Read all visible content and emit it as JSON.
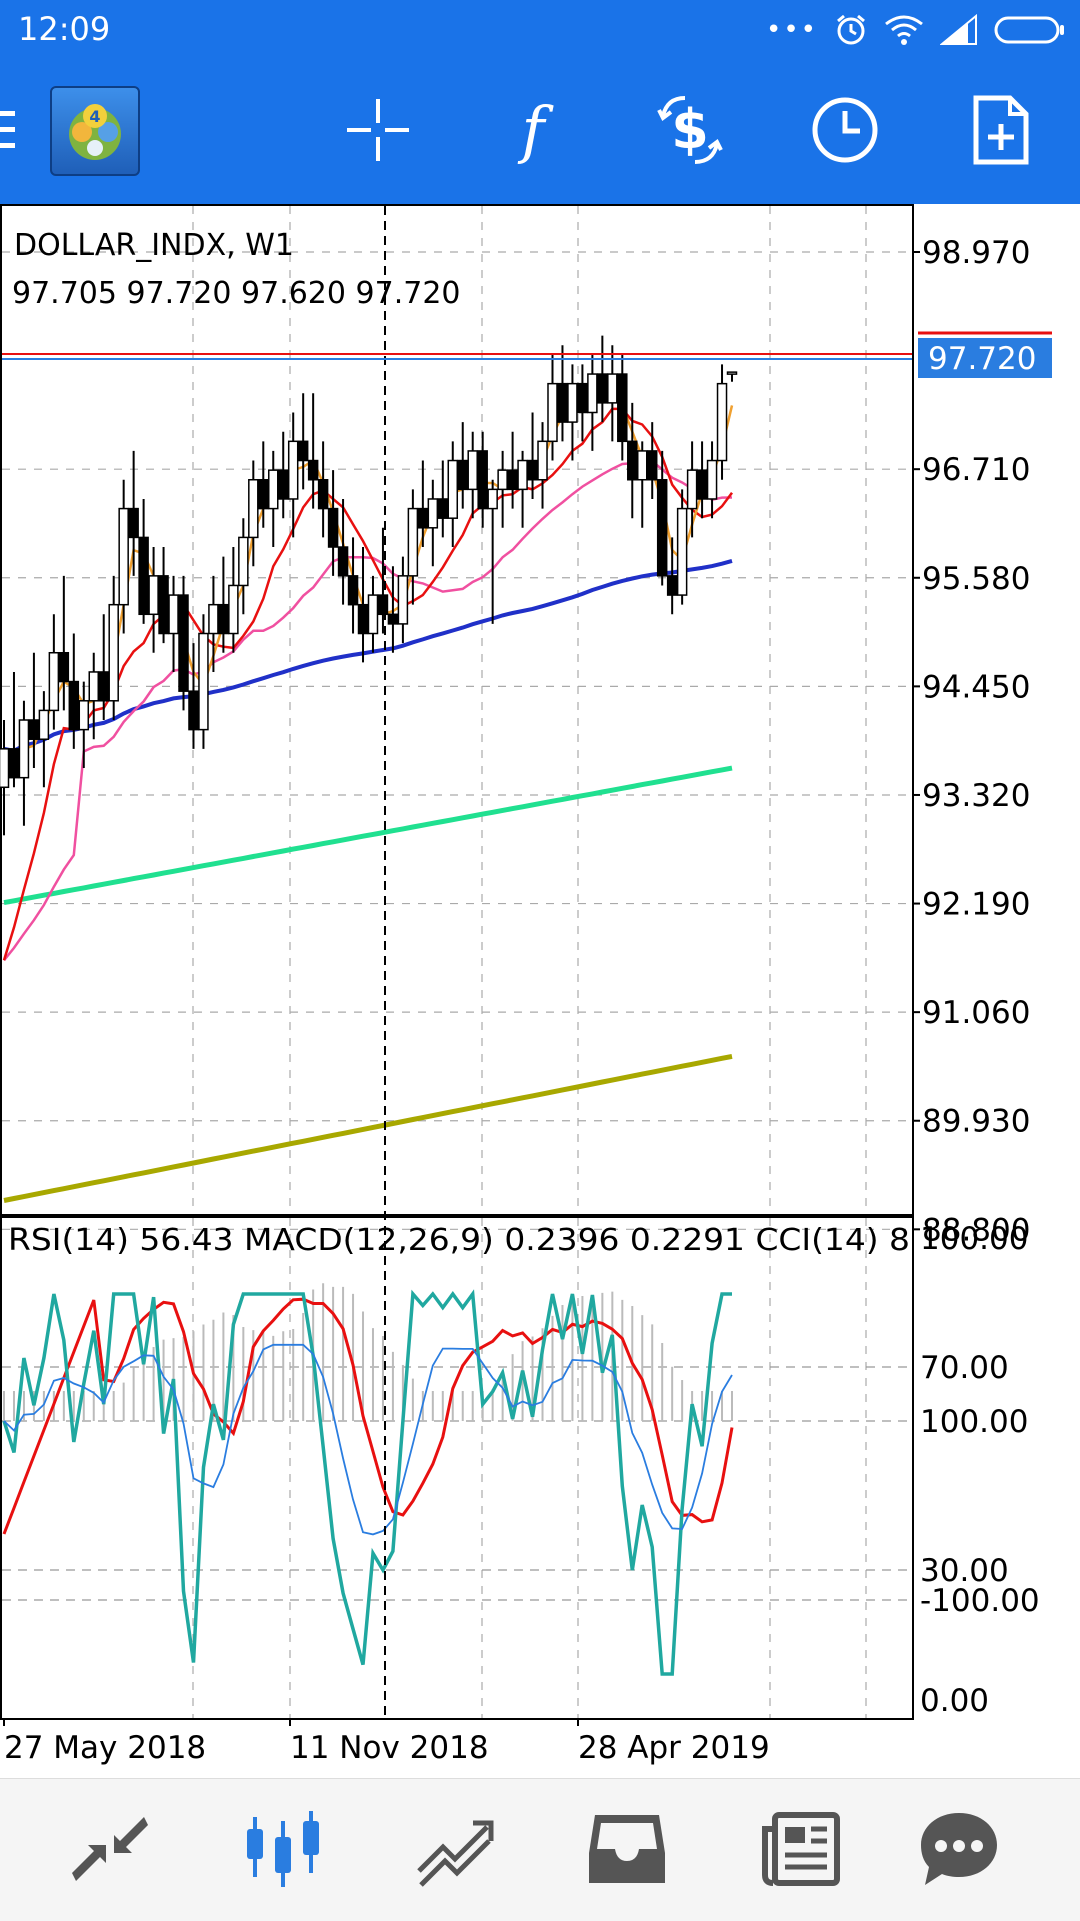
{
  "status_bar": {
    "time": "12:09",
    "signal": "...",
    "battery": ""
  },
  "chart": {
    "symbol_title": "DOLLAR_INDX, W1",
    "ohlc": "97.705 97.720 97.620 97.720",
    "price_axis": [
      "98.970",
      "96.710",
      "95.580",
      "94.450",
      "93.320",
      "92.190",
      "91.060",
      "89.930",
      "88.800"
    ],
    "current_price": "97.720",
    "indicator_title": "RSI(14) 56.43 MACD(12,26,9) 0.2396 0.2291 CCI(14) 8",
    "indicator_axis": [
      "100.00",
      "70.00",
      "100.00",
      "30.00",
      "-100.00",
      "0.00"
    ],
    "date_axis": [
      "27 May 2018",
      "11 Nov 2018",
      "28 Apr 2019"
    ]
  },
  "colors": {
    "toolbar": "#1a73e8",
    "ma_fast": "#f0a030",
    "ma_red": "#e81010",
    "ma_pink": "#f050a0",
    "ma_blue": "#2030c8",
    "ma_green": "#20e090",
    "ma_olive": "#a8a800",
    "rsi": "#e81010",
    "macd_signal": "#2a7de0",
    "cci": "#20a8a0",
    "price_tag": "#2a7de0"
  },
  "chart_data": {
    "type": "candlestick",
    "title": "DOLLAR_INDX, W1",
    "ylim": [
      88.2,
      99.8
    ],
    "price_ticks": [
      98.97,
      96.71,
      95.58,
      94.45,
      93.32,
      92.19,
      91.06,
      89.93,
      88.8
    ],
    "indicator_ticks": [
      100,
      70,
      30,
      0
    ],
    "candles": [
      {
        "o": 93.4,
        "h": 94.1,
        "l": 92.9,
        "c": 93.8
      },
      {
        "o": 93.8,
        "h": 94.6,
        "l": 93.4,
        "c": 93.5
      },
      {
        "o": 93.5,
        "h": 94.3,
        "l": 93.0,
        "c": 94.1
      },
      {
        "o": 94.1,
        "h": 94.8,
        "l": 93.6,
        "c": 93.9
      },
      {
        "o": 93.9,
        "h": 94.4,
        "l": 93.4,
        "c": 94.2
      },
      {
        "o": 94.2,
        "h": 95.2,
        "l": 94.0,
        "c": 94.8
      },
      {
        "o": 94.8,
        "h": 95.6,
        "l": 94.2,
        "c": 94.5
      },
      {
        "o": 94.5,
        "h": 95.0,
        "l": 93.8,
        "c": 94.0
      },
      {
        "o": 94.0,
        "h": 94.5,
        "l": 93.6,
        "c": 94.3
      },
      {
        "o": 94.3,
        "h": 94.8,
        "l": 93.9,
        "c": 94.6
      },
      {
        "o": 94.6,
        "h": 95.2,
        "l": 94.1,
        "c": 94.3
      },
      {
        "o": 94.3,
        "h": 95.6,
        "l": 94.1,
        "c": 95.3
      },
      {
        "o": 95.3,
        "h": 96.6,
        "l": 95.0,
        "c": 96.3
      },
      {
        "o": 96.3,
        "h": 96.9,
        "l": 95.6,
        "c": 96.0
      },
      {
        "o": 96.0,
        "h": 96.4,
        "l": 95.1,
        "c": 95.2
      },
      {
        "o": 95.2,
        "h": 95.9,
        "l": 94.8,
        "c": 95.6
      },
      {
        "o": 95.6,
        "h": 95.9,
        "l": 94.9,
        "c": 95.0
      },
      {
        "o": 95.0,
        "h": 95.6,
        "l": 94.6,
        "c": 95.4
      },
      {
        "o": 95.4,
        "h": 95.6,
        "l": 94.2,
        "c": 94.4
      },
      {
        "o": 94.4,
        "h": 94.9,
        "l": 93.8,
        "c": 94.0
      },
      {
        "o": 94.0,
        "h": 95.2,
        "l": 93.8,
        "c": 95.0
      },
      {
        "o": 95.0,
        "h": 95.6,
        "l": 94.6,
        "c": 95.3
      },
      {
        "o": 95.3,
        "h": 95.8,
        "l": 94.8,
        "c": 95.0
      },
      {
        "o": 95.0,
        "h": 95.9,
        "l": 94.8,
        "c": 95.5
      },
      {
        "o": 95.5,
        "h": 96.2,
        "l": 95.2,
        "c": 96.0
      },
      {
        "o": 96.0,
        "h": 96.8,
        "l": 95.7,
        "c": 96.6
      },
      {
        "o": 96.6,
        "h": 97.0,
        "l": 96.1,
        "c": 96.3
      },
      {
        "o": 96.3,
        "h": 96.9,
        "l": 95.9,
        "c": 96.7
      },
      {
        "o": 96.7,
        "h": 97.1,
        "l": 96.2,
        "c": 96.4
      },
      {
        "o": 96.4,
        "h": 97.3,
        "l": 96.0,
        "c": 97.0
      },
      {
        "o": 97.0,
        "h": 97.5,
        "l": 96.5,
        "c": 96.8
      },
      {
        "o": 96.8,
        "h": 97.5,
        "l": 96.3,
        "c": 96.6
      },
      {
        "o": 96.6,
        "h": 97.0,
        "l": 96.0,
        "c": 96.3
      },
      {
        "o": 96.3,
        "h": 96.7,
        "l": 95.6,
        "c": 95.9
      },
      {
        "o": 95.9,
        "h": 96.4,
        "l": 95.3,
        "c": 95.6
      },
      {
        "o": 95.6,
        "h": 96.0,
        "l": 95.0,
        "c": 95.3
      },
      {
        "o": 95.3,
        "h": 95.9,
        "l": 94.7,
        "c": 95.0
      },
      {
        "o": 95.0,
        "h": 95.6,
        "l": 94.8,
        "c": 95.4
      },
      {
        "o": 95.4,
        "h": 96.1,
        "l": 95.0,
        "c": 95.2
      },
      {
        "o": 95.2,
        "h": 95.7,
        "l": 94.8,
        "c": 95.1
      },
      {
        "o": 95.1,
        "h": 95.8,
        "l": 94.9,
        "c": 95.6
      },
      {
        "o": 95.6,
        "h": 96.5,
        "l": 95.3,
        "c": 96.3
      },
      {
        "o": 96.3,
        "h": 96.8,
        "l": 95.9,
        "c": 96.1
      },
      {
        "o": 96.1,
        "h": 96.6,
        "l": 95.7,
        "c": 96.4
      },
      {
        "o": 96.4,
        "h": 96.8,
        "l": 96.0,
        "c": 96.2
      },
      {
        "o": 96.2,
        "h": 97.0,
        "l": 95.9,
        "c": 96.8
      },
      {
        "o": 96.8,
        "h": 97.2,
        "l": 96.3,
        "c": 96.5
      },
      {
        "o": 96.5,
        "h": 97.1,
        "l": 96.2,
        "c": 96.9
      },
      {
        "o": 96.9,
        "h": 97.1,
        "l": 96.1,
        "c": 96.3
      },
      {
        "o": 96.3,
        "h": 96.6,
        "l": 95.1,
        "c": 96.5
      },
      {
        "o": 96.5,
        "h": 96.9,
        "l": 96.1,
        "c": 96.7
      },
      {
        "o": 96.7,
        "h": 97.1,
        "l": 96.3,
        "c": 96.5
      },
      {
        "o": 96.5,
        "h": 96.9,
        "l": 96.1,
        "c": 96.8
      },
      {
        "o": 96.8,
        "h": 97.3,
        "l": 96.4,
        "c": 96.6
      },
      {
        "o": 96.6,
        "h": 97.2,
        "l": 96.3,
        "c": 97.0
      },
      {
        "o": 97.0,
        "h": 97.9,
        "l": 96.8,
        "c": 97.6
      },
      {
        "o": 97.6,
        "h": 98.0,
        "l": 97.0,
        "c": 97.2
      },
      {
        "o": 97.2,
        "h": 97.8,
        "l": 96.8,
        "c": 97.6
      },
      {
        "o": 97.6,
        "h": 97.8,
        "l": 97.0,
        "c": 97.3
      },
      {
        "o": 97.3,
        "h": 97.9,
        "l": 96.9,
        "c": 97.7
      },
      {
        "o": 97.7,
        "h": 98.1,
        "l": 97.2,
        "c": 97.4
      },
      {
        "o": 97.4,
        "h": 98.0,
        "l": 97.0,
        "c": 97.7
      },
      {
        "o": 97.7,
        "h": 97.9,
        "l": 96.8,
        "c": 97.0
      },
      {
        "o": 97.0,
        "h": 97.4,
        "l": 96.2,
        "c": 96.6
      },
      {
        "o": 96.6,
        "h": 97.0,
        "l": 96.1,
        "c": 96.9
      },
      {
        "o": 96.9,
        "h": 97.2,
        "l": 96.4,
        "c": 96.6
      },
      {
        "o": 96.6,
        "h": 96.9,
        "l": 95.5,
        "c": 95.6
      },
      {
        "o": 95.6,
        "h": 96.0,
        "l": 95.2,
        "c": 95.4
      },
      {
        "o": 95.4,
        "h": 96.5,
        "l": 95.3,
        "c": 96.3
      },
      {
        "o": 96.3,
        "h": 97.0,
        "l": 96.0,
        "c": 96.7
      },
      {
        "o": 96.7,
        "h": 97.0,
        "l": 96.2,
        "c": 96.4
      },
      {
        "o": 96.4,
        "h": 97.0,
        "l": 96.2,
        "c": 96.8
      },
      {
        "o": 96.8,
        "h": 97.8,
        "l": 96.6,
        "c": 97.6
      },
      {
        "o": 97.705,
        "h": 97.72,
        "l": 97.62,
        "c": 97.72
      }
    ],
    "moving_averages": [
      {
        "color": "#a8a800",
        "from": 89.1,
        "to": 90.6
      },
      {
        "color": "#20e090",
        "from": 92.2,
        "to": 93.6
      },
      {
        "color": "#2030c8",
        "from": 93.8,
        "to": 95.5
      },
      {
        "color": "#f050a0",
        "from": 91.6,
        "to": 96.6
      },
      {
        "color": "#e81010",
        "from": 91.6,
        "to": 96.9
      },
      {
        "color": "#f0a030",
        "from": 93.0,
        "to": 96.7
      }
    ]
  }
}
